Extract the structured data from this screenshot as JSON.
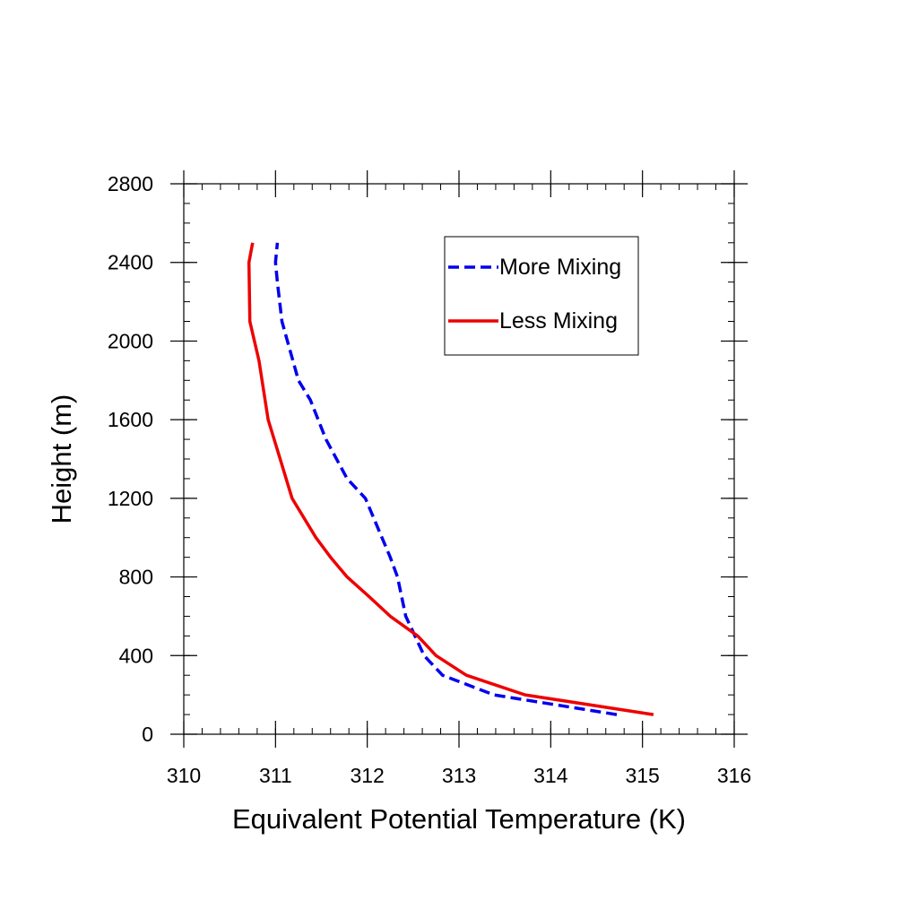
{
  "chart_data": {
    "type": "line",
    "title": "",
    "xlabel": "Equivalent Potential Temperature (K)",
    "ylabel": "Height (m)",
    "xlim": [
      310,
      316
    ],
    "ylim": [
      0,
      2800
    ],
    "xticks": [
      310,
      311,
      312,
      313,
      314,
      315,
      316
    ],
    "yticks": [
      0,
      400,
      800,
      1200,
      1600,
      2000,
      2400,
      2800
    ],
    "x_minor_step": 0.2,
    "y_minor_step": 100,
    "grid": false,
    "legend_position": "top-right",
    "series": [
      {
        "name": "More Mixing",
        "color": "#0000ee",
        "style": "dashed",
        "points": [
          [
            314.72,
            100
          ],
          [
            313.38,
            200
          ],
          [
            312.82,
            300
          ],
          [
            312.62,
            400
          ],
          [
            312.52,
            500
          ],
          [
            312.42,
            600
          ],
          [
            312.33,
            800
          ],
          [
            312.25,
            900
          ],
          [
            311.98,
            1200
          ],
          [
            311.78,
            1300
          ],
          [
            311.55,
            1500
          ],
          [
            311.38,
            1700
          ],
          [
            311.25,
            1800
          ],
          [
            311.13,
            2000
          ],
          [
            311.07,
            2100
          ],
          [
            311.02,
            2300
          ],
          [
            311.0,
            2400
          ],
          [
            311.02,
            2500
          ]
        ]
      },
      {
        "name": "Less Mixing",
        "color": "#ee0000",
        "style": "solid",
        "points": [
          [
            315.12,
            100
          ],
          [
            313.72,
            200
          ],
          [
            313.08,
            300
          ],
          [
            312.75,
            400
          ],
          [
            312.55,
            500
          ],
          [
            312.25,
            600
          ],
          [
            312.02,
            700
          ],
          [
            311.78,
            800
          ],
          [
            311.6,
            900
          ],
          [
            311.44,
            1000
          ],
          [
            311.18,
            1200
          ],
          [
            311.05,
            1400
          ],
          [
            310.92,
            1600
          ],
          [
            310.82,
            1900
          ],
          [
            310.72,
            2100
          ],
          [
            310.71,
            2400
          ],
          [
            310.75,
            2500
          ]
        ]
      }
    ]
  }
}
